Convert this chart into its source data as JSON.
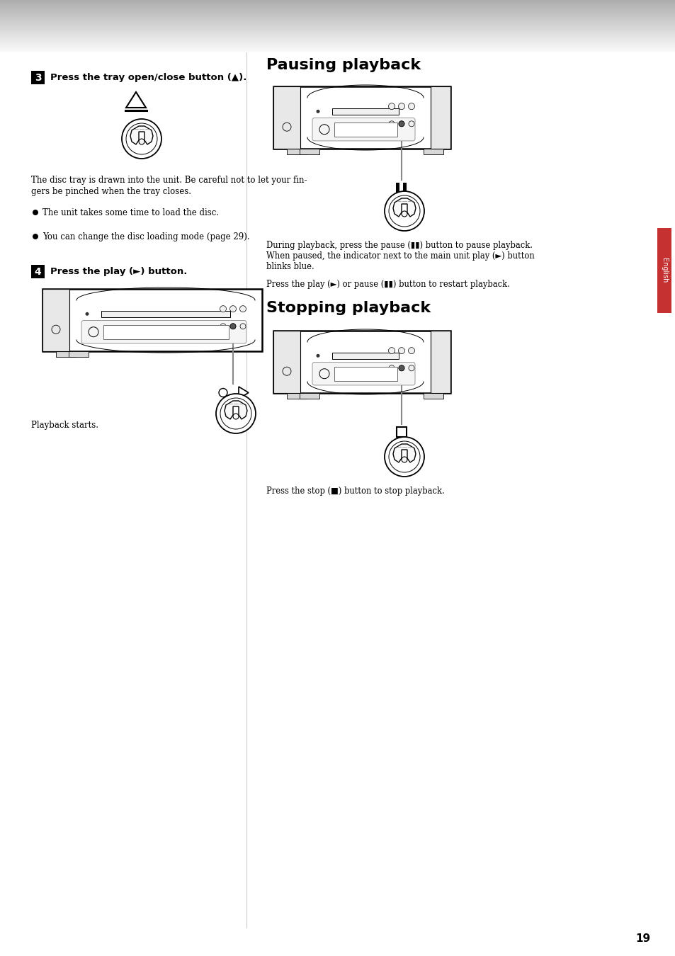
{
  "page_bg": "#ffffff",
  "page_number": "19",
  "left": {
    "step3_num": "3",
    "step3_text": "Press the tray open/close button (▲).",
    "step3_desc_line1": "The disc tray is drawn into the unit. Be careful not to let your fin-",
    "step3_desc_line2": "gers be pinched when the tray closes.",
    "bullet1": "The unit takes some time to load the disc.",
    "bullet2": "You can change the disc loading mode (page 29).",
    "step4_num": "4",
    "step4_text": "Press the play (►) button.",
    "playback_starts": "Playback starts."
  },
  "right": {
    "pausing_title": "Pausing playback",
    "pausing_text1_line1": "During playback, press the pause (▮▮) button to pause playback.",
    "pausing_text1_line2": "When paused, the indicator next to the main unit play (►) button",
    "pausing_text1_line3": "blinks blue.",
    "pausing_text2": "Press the play (►) or pause (▮▮) button to restart playback.",
    "stopping_title": "Stopping playback",
    "stopping_text": "Press the stop (■) button to stop playback."
  },
  "english_tab_color": "#c53030"
}
